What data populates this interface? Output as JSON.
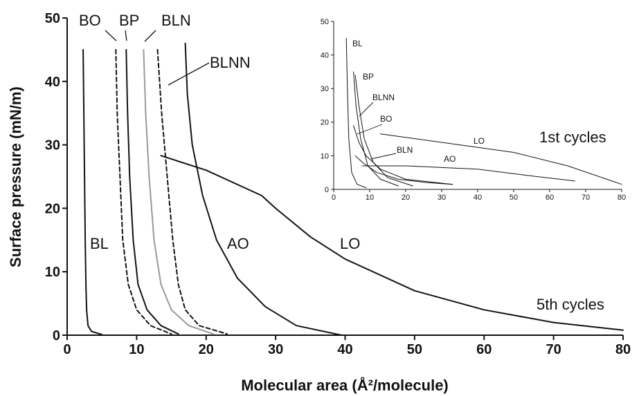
{
  "chart_data": [
    {
      "type": "line",
      "xlabel": "Molecular area (Å²/molecule)",
      "ylabel": "Surface pressure (mN/m)",
      "xlim": [
        0,
        80
      ],
      "ylim": [
        0,
        50
      ],
      "xticks": [
        0,
        10,
        20,
        30,
        40,
        50,
        60,
        70,
        80
      ],
      "yticks": [
        0,
        10,
        20,
        30,
        40,
        50
      ],
      "grid": false,
      "annotation": "5th cycles",
      "series": [
        {
          "name": "BL",
          "color": "#111111",
          "style": "solid",
          "x": [
            2.3,
            2.4,
            2.5,
            2.6,
            2.7,
            2.8,
            3.0,
            3.5,
            5.0
          ],
          "y": [
            45,
            35,
            25,
            15,
            8,
            4,
            1.5,
            0.6,
            0.1
          ]
        },
        {
          "name": "BO",
          "color": "#111111",
          "style": "dashed",
          "x": [
            7.0,
            7.2,
            7.6,
            8.0,
            8.8,
            10.0,
            12.0,
            15.0
          ],
          "y": [
            45,
            35,
            25,
            15,
            8,
            4,
            1.5,
            0.2
          ]
        },
        {
          "name": "BP",
          "color": "#111111",
          "style": "solid",
          "x": [
            8.5,
            8.7,
            9.0,
            9.5,
            10.2,
            11.5,
            13.5,
            16.0
          ],
          "y": [
            45,
            35,
            25,
            15,
            8,
            4,
            1.5,
            0.2
          ]
        },
        {
          "name": "BLN",
          "color": "#999999",
          "style": "solid",
          "x": [
            11.0,
            11.3,
            11.8,
            12.5,
            13.5,
            15.0,
            17.5,
            21.0
          ],
          "y": [
            45,
            35,
            25,
            15,
            8,
            4,
            1.5,
            0.2
          ]
        },
        {
          "name": "BLNN",
          "color": "#111111",
          "style": "dashed",
          "x": [
            13.0,
            13.6,
            14.4,
            15.2,
            16.0,
            17.0,
            19.0,
            23.0
          ],
          "y": [
            45,
            35,
            25,
            15,
            8,
            4,
            1.5,
            0.2
          ]
        },
        {
          "name": "AO",
          "color": "#111111",
          "style": "solid",
          "x": [
            17.0,
            17.3,
            18.0,
            19.5,
            21.5,
            24.5,
            28.5,
            33.0,
            39.5
          ],
          "y": [
            46,
            38,
            30,
            22,
            15,
            9,
            4.5,
            1.5,
            0
          ]
        },
        {
          "name": "LO",
          "color": "#111111",
          "style": "solid",
          "x": [
            13.5,
            20,
            28,
            30,
            35,
            40,
            50,
            60,
            70,
            80
          ],
          "y": [
            28.3,
            26,
            22,
            20,
            15.5,
            12,
            7,
            4,
            2,
            0.8
          ]
        }
      ]
    },
    {
      "type": "line",
      "annotation": "1st cycles",
      "xlim": [
        0,
        80
      ],
      "ylim": [
        0,
        50
      ],
      "xticks": [
        0,
        10,
        20,
        30,
        40,
        50,
        60,
        70,
        80
      ],
      "yticks": [
        0,
        10,
        20,
        30,
        40,
        50
      ],
      "grid": false,
      "series": [
        {
          "name": "BL",
          "x": [
            3.5,
            3.8,
            4.2,
            5.0,
            6.5,
            9.0
          ],
          "y": [
            45,
            30,
            15,
            5,
            1.5,
            0.5
          ]
        },
        {
          "name": "BP",
          "x": [
            5.5,
            6.2,
            7.5,
            9.5,
            13.0,
            18.0
          ],
          "y": [
            35,
            25,
            15,
            7,
            3,
            1
          ]
        },
        {
          "name": "BLNN",
          "x": [
            6.0,
            7.0,
            8.5,
            11.0,
            15.0,
            22.0
          ],
          "y": [
            34,
            25,
            15,
            8,
            3.5,
            1
          ]
        },
        {
          "name": "BO",
          "x": [
            5.5,
            7.0,
            9.0,
            13.0,
            20.0,
            33.0
          ],
          "y": [
            19,
            14,
            10,
            6,
            3,
            1.5
          ]
        },
        {
          "name": "BLN",
          "x": [
            6.0,
            8.0,
            12.0,
            18.0,
            26.0,
            33.0
          ],
          "y": [
            10,
            8,
            5,
            3,
            2,
            1.5
          ]
        },
        {
          "name": "AO",
          "x": [
            8.0,
            20.0,
            40.0,
            55.0,
            67.0
          ],
          "y": [
            7,
            7,
            6,
            4,
            2.5
          ]
        },
        {
          "name": "LO",
          "x": [
            13.0,
            30.0,
            50.0,
            65.0,
            80.0
          ],
          "y": [
            16.5,
            14,
            11,
            7,
            1.5
          ]
        }
      ]
    }
  ]
}
